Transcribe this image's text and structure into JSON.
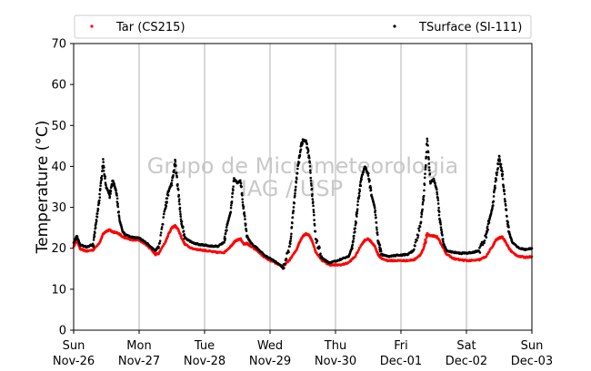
{
  "chart_data": {
    "type": "scatter",
    "ylabel": "Temperature (°C)",
    "ylim": [
      0,
      70
    ],
    "yticks": [
      0,
      10,
      20,
      30,
      40,
      50,
      60,
      70
    ],
    "xlim_days": [
      0,
      7
    ],
    "x_ticks": [
      {
        "day": 0,
        "line1": "Sun",
        "line2": "Nov-26"
      },
      {
        "day": 1,
        "line1": "Mon",
        "line2": "Nov-27"
      },
      {
        "day": 2,
        "line1": "Tue",
        "line2": "Nov-28"
      },
      {
        "day": 3,
        "line1": "Wed",
        "line2": "Nov-29"
      },
      {
        "day": 4,
        "line1": "Thu",
        "line2": "Nov-30"
      },
      {
        "day": 5,
        "line1": "Fri",
        "line2": "Dec-01"
      },
      {
        "day": 6,
        "line1": "Sat",
        "line2": "Dec-02"
      },
      {
        "day": 7,
        "line1": "Sun",
        "line2": "Dec-03"
      }
    ],
    "grid": "vertical",
    "legend_position": "top",
    "watermark": [
      "Grupo de Micrometeorologia",
      "IAG / USP"
    ],
    "series": [
      {
        "name": "Tar (CS215)",
        "color": "#ff0000",
        "points": [
          [
            0.0,
            20.5
          ],
          [
            0.05,
            22.0
          ],
          [
            0.1,
            19.8
          ],
          [
            0.2,
            19.3
          ],
          [
            0.3,
            19.6
          ],
          [
            0.4,
            21.5
          ],
          [
            0.45,
            23.5
          ],
          [
            0.5,
            24.2
          ],
          [
            0.55,
            24.5
          ],
          [
            0.6,
            24.0
          ],
          [
            0.65,
            23.8
          ],
          [
            0.7,
            23.5
          ],
          [
            0.75,
            22.8
          ],
          [
            0.8,
            22.5
          ],
          [
            0.9,
            22.0
          ],
          [
            1.0,
            22.0
          ],
          [
            1.1,
            21.0
          ],
          [
            1.2,
            19.5
          ],
          [
            1.25,
            18.5
          ],
          [
            1.3,
            18.8
          ],
          [
            1.4,
            21.5
          ],
          [
            1.45,
            23.5
          ],
          [
            1.5,
            25.0
          ],
          [
            1.55,
            25.5
          ],
          [
            1.6,
            24.5
          ],
          [
            1.65,
            22.5
          ],
          [
            1.7,
            21.0
          ],
          [
            1.8,
            20.0
          ],
          [
            1.9,
            19.7
          ],
          [
            2.0,
            19.5
          ],
          [
            2.1,
            19.2
          ],
          [
            2.2,
            19.0
          ],
          [
            2.3,
            19.0
          ],
          [
            2.4,
            20.5
          ],
          [
            2.45,
            21.5
          ],
          [
            2.5,
            22.0
          ],
          [
            2.55,
            22.3
          ],
          [
            2.6,
            21.0
          ],
          [
            2.65,
            21.2
          ],
          [
            2.7,
            20.5
          ],
          [
            2.8,
            19.5
          ],
          [
            2.9,
            18.0
          ],
          [
            3.0,
            17.0
          ],
          [
            3.1,
            16.3
          ],
          [
            3.2,
            15.6
          ],
          [
            3.3,
            17.2
          ],
          [
            3.4,
            19.5
          ],
          [
            3.45,
            21.5
          ],
          [
            3.5,
            23.0
          ],
          [
            3.55,
            23.5
          ],
          [
            3.6,
            23.2
          ],
          [
            3.65,
            21.5
          ],
          [
            3.7,
            19.0
          ],
          [
            3.8,
            17.0
          ],
          [
            3.9,
            16.0
          ],
          [
            4.0,
            15.9
          ],
          [
            4.1,
            16.0
          ],
          [
            4.2,
            16.5
          ],
          [
            4.3,
            18.0
          ],
          [
            4.4,
            21.0
          ],
          [
            4.45,
            22.0
          ],
          [
            4.5,
            22.3
          ],
          [
            4.55,
            21.5
          ],
          [
            4.6,
            20.5
          ],
          [
            4.65,
            18.5
          ],
          [
            4.7,
            17.5
          ],
          [
            4.8,
            17.0
          ],
          [
            4.9,
            17.0
          ],
          [
            5.0,
            17.0
          ],
          [
            5.1,
            17.0
          ],
          [
            5.2,
            17.2
          ],
          [
            5.3,
            18.5
          ],
          [
            5.35,
            20.0
          ],
          [
            5.4,
            23.5
          ],
          [
            5.45,
            23.0
          ],
          [
            5.5,
            23.0
          ],
          [
            5.55,
            22.8
          ],
          [
            5.6,
            21.5
          ],
          [
            5.65,
            20.0
          ],
          [
            5.7,
            18.5
          ],
          [
            5.8,
            17.5
          ],
          [
            5.9,
            17.2
          ],
          [
            6.0,
            17.0
          ],
          [
            6.1,
            17.0
          ],
          [
            6.2,
            17.2
          ],
          [
            6.3,
            18.0
          ],
          [
            6.4,
            20.5
          ],
          [
            6.45,
            22.0
          ],
          [
            6.5,
            22.5
          ],
          [
            6.55,
            22.8
          ],
          [
            6.6,
            21.5
          ],
          [
            6.65,
            20.0
          ],
          [
            6.7,
            19.0
          ],
          [
            6.8,
            18.0
          ],
          [
            6.9,
            17.8
          ],
          [
            7.0,
            18.0
          ]
        ]
      },
      {
        "name": "TSurface (SI-111)",
        "color": "#000000",
        "points": [
          [
            0.0,
            21.5
          ],
          [
            0.05,
            23.0
          ],
          [
            0.1,
            20.8
          ],
          [
            0.2,
            20.3
          ],
          [
            0.3,
            21.0
          ],
          [
            0.35,
            27.0
          ],
          [
            0.4,
            33.0
          ],
          [
            0.45,
            41.0
          ],
          [
            0.5,
            35.0
          ],
          [
            0.55,
            33.0
          ],
          [
            0.6,
            36.5
          ],
          [
            0.65,
            34.0
          ],
          [
            0.7,
            27.0
          ],
          [
            0.75,
            24.0
          ],
          [
            0.8,
            23.2
          ],
          [
            0.9,
            22.7
          ],
          [
            1.0,
            22.5
          ],
          [
            1.1,
            21.5
          ],
          [
            1.2,
            20.0
          ],
          [
            1.25,
            19.5
          ],
          [
            1.3,
            20.5
          ],
          [
            1.4,
            30.0
          ],
          [
            1.45,
            34.0
          ],
          [
            1.5,
            36.0
          ],
          [
            1.55,
            41.0
          ],
          [
            1.6,
            33.5
          ],
          [
            1.65,
            26.0
          ],
          [
            1.7,
            22.5
          ],
          [
            1.8,
            21.5
          ],
          [
            1.9,
            21.0
          ],
          [
            2.0,
            20.8
          ],
          [
            2.1,
            20.5
          ],
          [
            2.2,
            20.5
          ],
          [
            2.3,
            21.5
          ],
          [
            2.35,
            26.0
          ],
          [
            2.4,
            29.0
          ],
          [
            2.45,
            37.0
          ],
          [
            2.5,
            36.0
          ],
          [
            2.55,
            36.5
          ],
          [
            2.6,
            29.0
          ],
          [
            2.65,
            23.0
          ],
          [
            2.7,
            21.5
          ],
          [
            2.8,
            20.0
          ],
          [
            2.9,
            18.5
          ],
          [
            3.0,
            17.5
          ],
          [
            3.1,
            16.5
          ],
          [
            3.2,
            15.3
          ],
          [
            3.3,
            20.0
          ],
          [
            3.35,
            28.0
          ],
          [
            3.4,
            36.5
          ],
          [
            3.45,
            43.0
          ],
          [
            3.5,
            46.5
          ],
          [
            3.55,
            46.0
          ],
          [
            3.6,
            42.0
          ],
          [
            3.65,
            32.0
          ],
          [
            3.7,
            22.0
          ],
          [
            3.8,
            17.5
          ],
          [
            3.9,
            16.5
          ],
          [
            4.0,
            16.8
          ],
          [
            4.1,
            17.5
          ],
          [
            4.2,
            18.0
          ],
          [
            4.25,
            20.0
          ],
          [
            4.3,
            25.0
          ],
          [
            4.35,
            32.0
          ],
          [
            4.4,
            37.5
          ],
          [
            4.45,
            40.0
          ],
          [
            4.5,
            38.0
          ],
          [
            4.55,
            33.0
          ],
          [
            4.6,
            30.0
          ],
          [
            4.65,
            22.0
          ],
          [
            4.7,
            18.5
          ],
          [
            4.8,
            18.0
          ],
          [
            4.9,
            18.2
          ],
          [
            5.0,
            18.3
          ],
          [
            5.1,
            18.5
          ],
          [
            5.2,
            19.5
          ],
          [
            5.3,
            26.0
          ],
          [
            5.35,
            33.0
          ],
          [
            5.4,
            47.0
          ],
          [
            5.45,
            36.0
          ],
          [
            5.5,
            37.0
          ],
          [
            5.55,
            34.0
          ],
          [
            5.6,
            26.0
          ],
          [
            5.65,
            21.0
          ],
          [
            5.7,
            19.5
          ],
          [
            5.8,
            19.0
          ],
          [
            5.9,
            18.8
          ],
          [
            6.0,
            18.8
          ],
          [
            6.1,
            19.0
          ],
          [
            6.2,
            19.5
          ],
          [
            6.3,
            23.0
          ],
          [
            6.35,
            27.0
          ],
          [
            6.4,
            30.0
          ],
          [
            6.45,
            37.0
          ],
          [
            6.5,
            42.0
          ],
          [
            6.55,
            38.0
          ],
          [
            6.6,
            30.0
          ],
          [
            6.65,
            24.0
          ],
          [
            6.7,
            21.5
          ],
          [
            6.8,
            20.0
          ],
          [
            6.9,
            19.7
          ],
          [
            7.0,
            20.0
          ]
        ]
      }
    ]
  }
}
